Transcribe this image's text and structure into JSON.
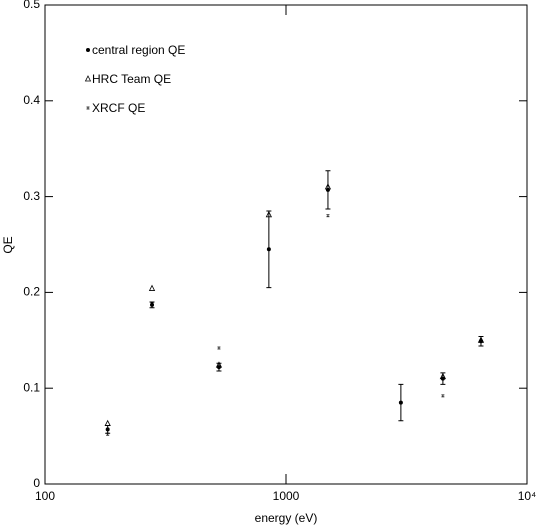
{
  "chart_data": {
    "type": "scatter",
    "xlabel": "energy (eV)",
    "ylabel": "QE",
    "xscale": "log",
    "xlim": [
      100,
      10000
    ],
    "xticks": [
      100,
      1000,
      {
        "value": 10000,
        "label": "10⁴"
      }
    ],
    "ylim": [
      0,
      0.5
    ],
    "yticks": [
      0,
      0.1,
      0.2,
      0.3,
      0.4,
      0.5
    ],
    "legend": "upper left",
    "grid": false,
    "series": [
      {
        "name": "central region QE",
        "color": "#000000",
        "marker": "dot",
        "x": [
          182,
          278,
          527,
          849,
          1493,
          2997,
          4477,
          6442
        ],
        "values": [
          0.057,
          0.187,
          0.122,
          0.245,
          0.307,
          0.085,
          0.11,
          0.149
        ],
        "errors": [
          0.004,
          0.003,
          0.004,
          0.04,
          0.02,
          0.019,
          0.006,
          0.005
        ]
      },
      {
        "name": "HRC Team QE",
        "color": "#000000",
        "marker": "triangle",
        "x": [
          182,
          278,
          527,
          849,
          1493,
          4477,
          6442
        ],
        "values": [
          0.063,
          0.204,
          0.124,
          0.281,
          0.31,
          0.112,
          0.15
        ]
      },
      {
        "name": "XRCF QE",
        "color": "#000000",
        "marker": "tick",
        "x": [
          182,
          278,
          527,
          1493,
          4477
        ],
        "values": [
          0.052,
          0.188,
          0.142,
          0.28,
          0.092
        ]
      }
    ]
  }
}
